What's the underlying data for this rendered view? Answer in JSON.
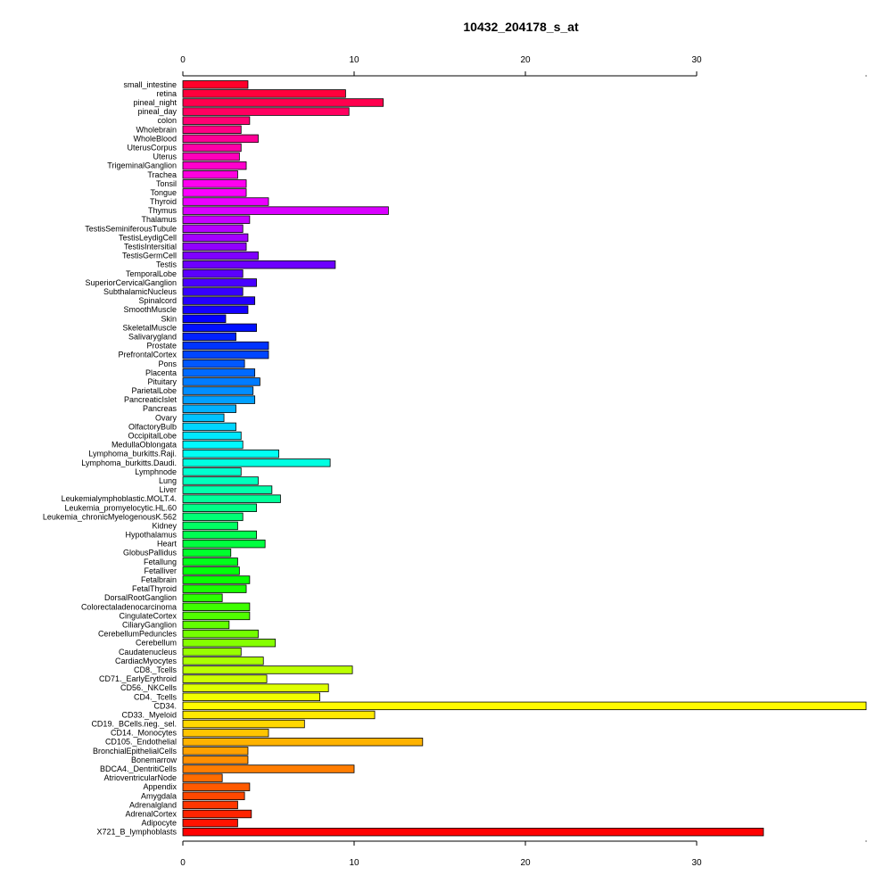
{
  "chart_data": {
    "type": "bar",
    "orientation": "horizontal",
    "title": "10432_204178_s_at",
    "xlabel": "",
    "ylabel": "",
    "xlim": [
      0,
      40
    ],
    "x_ticks": [
      0,
      10,
      20,
      30
    ],
    "axes": [
      "top",
      "bottom"
    ],
    "grid": false,
    "categories": [
      "small_intestine",
      "retina",
      "pineal_night",
      "pineal_day",
      "colon",
      "Wholebrain",
      "WholeBlood",
      "UterusCorpus",
      "Uterus",
      "TrigeminalGanglion",
      "Trachea",
      "Tonsil",
      "Tongue",
      "Thyroid",
      "Thymus",
      "Thalamus",
      "TestisSeminiferousTubule",
      "TestisLeydigCell",
      "TestisIntersitial",
      "TestisGermCell",
      "Testis",
      "TemporalLobe",
      "SuperiorCervicalGanglion",
      "SubthalamicNucleus",
      "Spinalcord",
      "SmoothMuscle",
      "Skin",
      "SkeletalMuscle",
      "Salivarygland",
      "Prostate",
      "PrefrontalCortex",
      "Pons",
      "Placenta",
      "Pituitary",
      "ParietalLobe",
      "PancreaticIslet",
      "Pancreas",
      "Ovary",
      "OlfactoryBulb",
      "OccipitalLobe",
      "MedullaOblongata",
      "Lymphoma_burkitts.Raji.",
      "Lymphoma_burkitts.Daudi.",
      "Lymphnode",
      "Lung",
      "Liver",
      "Leukemialymphoblastic.MOLT.4.",
      "Leukemia_promyelocytic.HL.60",
      "Leukemia_chronicMyelogenousK.562",
      "Kidney",
      "Hypothalamus",
      "Heart",
      "GlobusPallidus",
      "Fetallung",
      "Fetalliver",
      "Fetalbrain",
      "FetalThyroid",
      "DorsalRootGanglion",
      "Colorectaladenocarcinoma",
      "CingulateCortex",
      "CiliaryGanglion",
      "CerebellumPeduncles",
      "Cerebellum",
      "Caudatenucleus",
      "CardiacMyocytes",
      "CD8._Tcells",
      "CD71._EarlyErythroid",
      "CD56._NKCells",
      "CD4._Tcells",
      "CD34.",
      "CD33._Myeloid",
      "CD19._BCells.neg._sel.",
      "CD14._Monocytes",
      "CD105._Endothelial",
      "BronchialEpithelialCells",
      "Bonemarrow",
      "BDCA4._DentritiCells",
      "AtrioventricularNode",
      "Appendix",
      "Amygdala",
      "Adrenalgland",
      "AdrenalCortex",
      "Adipocyte",
      "X721_B_lymphoblasts"
    ],
    "values": [
      3.8,
      9.5,
      11.7,
      9.7,
      3.9,
      3.4,
      4.4,
      3.4,
      3.3,
      3.7,
      3.2,
      3.7,
      3.7,
      5.0,
      12.0,
      3.9,
      3.5,
      3.8,
      3.7,
      4.4,
      8.9,
      3.5,
      4.3,
      3.5,
      4.2,
      3.8,
      2.5,
      4.3,
      3.1,
      5.0,
      5.0,
      3.6,
      4.2,
      4.5,
      4.1,
      4.2,
      3.1,
      2.4,
      3.1,
      3.4,
      3.5,
      5.6,
      8.6,
      3.4,
      4.4,
      5.2,
      5.7,
      4.3,
      3.5,
      3.2,
      4.3,
      4.8,
      2.8,
      3.2,
      3.3,
      3.9,
      3.7,
      2.3,
      3.9,
      3.9,
      2.7,
      4.4,
      5.4,
      3.4,
      4.7,
      9.9,
      4.9,
      8.5,
      8.0,
      40.0,
      11.2,
      7.1,
      5.0,
      14.0,
      3.8,
      3.8,
      10.0,
      2.3,
      3.9,
      3.6,
      3.2,
      4.0,
      3.2,
      33.9
    ],
    "colors": "rainbow gradient from red (top) through magenta, violet, blue, cyan, green, yellow, orange back to red (bottom)"
  }
}
